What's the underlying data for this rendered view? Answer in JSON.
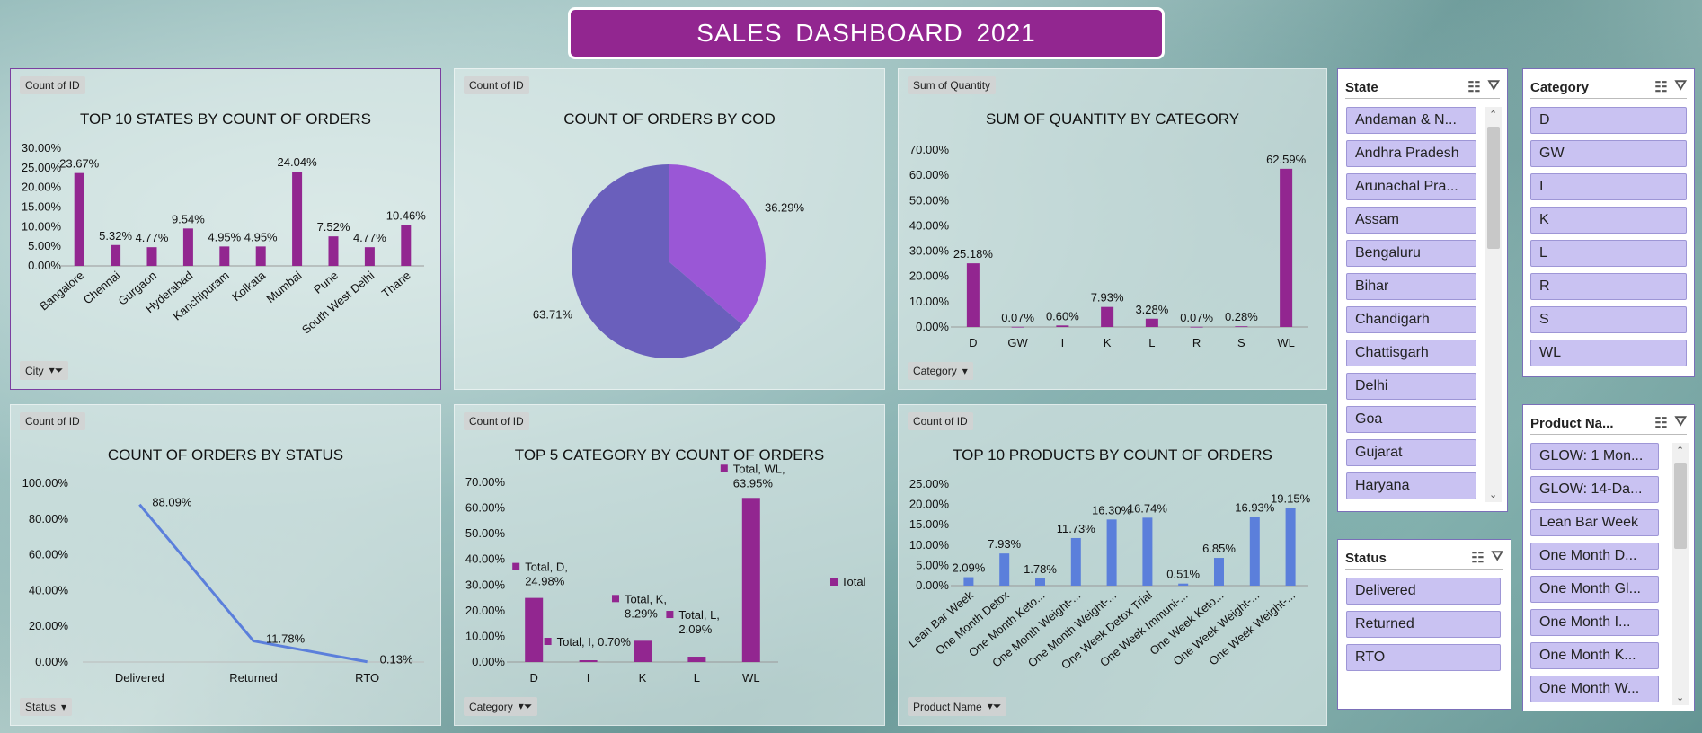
{
  "title": "SALES  DASHBOARD  2021",
  "colors": {
    "purple": "#922690",
    "blue": "#5b7fdb",
    "pie_light": "#9a57d6",
    "pie_dark": "#6a5fbc",
    "slicer_item": "#c9c2f2"
  },
  "chart_data": [
    {
      "type": "bar",
      "pill": "Count of ID",
      "title": "TOP 10 STATES BY COUNT OF ORDERS",
      "filter_label": "City",
      "categories": [
        "Bangalore",
        "Chennai",
        "Gurgaon",
        "Hyderabad",
        "Kanchipuram",
        "Kolkata",
        "Mumbai",
        "Pune",
        "South West Delhi",
        "Thane"
      ],
      "values": [
        23.67,
        5.32,
        4.77,
        9.54,
        4.95,
        4.95,
        24.04,
        7.52,
        4.77,
        10.46
      ],
      "labels": [
        "23.67%",
        "5.32%",
        "4.77%",
        "9.54%",
        "4.95%",
        "4.95%",
        "24.04%",
        "7.52%",
        "4.77%",
        "10.46%"
      ],
      "yticks": [
        "0.00%",
        "5.00%",
        "10.00%",
        "15.00%",
        "20.00%",
        "25.00%",
        "30.00%"
      ],
      "ylim": [
        0,
        30
      ]
    },
    {
      "type": "pie",
      "pill": "Count of ID",
      "title": "COUNT OF ORDERS BY COD",
      "values": [
        36.29,
        63.71
      ],
      "labels": [
        "36.29%",
        "63.71%"
      ]
    },
    {
      "type": "bar",
      "pill": "Sum of Quantity",
      "title": "SUM OF QUANTITY BY CATEGORY",
      "filter_label": "Category",
      "categories": [
        "D",
        "GW",
        "I",
        "K",
        "L",
        "R",
        "S",
        "WL"
      ],
      "values": [
        25.18,
        0.07,
        0.6,
        7.93,
        3.28,
        0.07,
        0.28,
        62.59
      ],
      "labels": [
        "25.18%",
        "0.07%",
        "0.60%",
        "7.93%",
        "3.28%",
        "0.07%",
        "0.28%",
        "62.59%"
      ],
      "yticks": [
        "0.00%",
        "10.00%",
        "20.00%",
        "30.00%",
        "40.00%",
        "50.00%",
        "60.00%",
        "70.00%"
      ],
      "ylim": [
        0,
        70
      ]
    },
    {
      "type": "line",
      "pill": "Count of ID",
      "title": "COUNT OF ORDERS BY STATUS",
      "filter_label": "Status",
      "categories": [
        "Delivered",
        "Returned",
        "RTO"
      ],
      "values": [
        88.09,
        11.78,
        0.13
      ],
      "labels": [
        "88.09%",
        "11.78%",
        "0.13%"
      ],
      "yticks": [
        "0.00%",
        "20.00%",
        "40.00%",
        "60.00%",
        "80.00%",
        "100.00%"
      ],
      "ylim": [
        0,
        100
      ]
    },
    {
      "type": "bar",
      "pill": "Count of ID",
      "title": "TOP 5 CATEGORY BY COUNT OF ORDERS",
      "filter_label": "Category",
      "legend": "Total",
      "categories": [
        "D",
        "I",
        "K",
        "L",
        "WL"
      ],
      "values": [
        24.98,
        0.7,
        8.29,
        2.09,
        63.95
      ],
      "labels": [
        [
          "Total, D,",
          "24.98%"
        ],
        [
          "Total, I, 0.70%"
        ],
        [
          "Total, K,",
          "8.29%"
        ],
        [
          "Total, L,",
          "2.09%"
        ],
        [
          "Total, WL,",
          "63.95%"
        ]
      ],
      "yticks": [
        "0.00%",
        "10.00%",
        "20.00%",
        "30.00%",
        "40.00%",
        "50.00%",
        "60.00%",
        "70.00%"
      ],
      "ylim": [
        0,
        70
      ]
    },
    {
      "type": "bar",
      "pill": "Count of ID",
      "title": "TOP 10 PRODUCTS BY COUNT OF ORDERS",
      "filter_label": "Product  Name",
      "categories": [
        "Lean Bar Week",
        "One Month Detox",
        "One Month Keto...",
        "One Month Weight-...",
        "One Month Weight-...",
        "One Week Detox Trial",
        "One Week Immuni-...",
        "One Week Keto...",
        "One Week Weight-...",
        "One Week Weight-..."
      ],
      "values": [
        2.09,
        7.93,
        1.78,
        11.73,
        16.3,
        16.74,
        0.51,
        6.85,
        16.93,
        19.15
      ],
      "labels": [
        "2.09%",
        "7.93%",
        "1.78%",
        "11.73%",
        "16.30%",
        "16.74%",
        "0.51%",
        "6.85%",
        "16.93%",
        "19.15%"
      ],
      "yticks": [
        "0.00%",
        "5.00%",
        "10.00%",
        "15.00%",
        "20.00%",
        "25.00%"
      ],
      "ylim": [
        0,
        25
      ]
    }
  ],
  "slicers": {
    "state": {
      "title": "State",
      "items": [
        "Andaman & N...",
        "Andhra Pradesh",
        "Arunachal Pra...",
        "Assam",
        "Bengaluru",
        "Bihar",
        "Chandigarh",
        "Chattisgarh",
        "Delhi",
        "Goa",
        "Gujarat",
        "Haryana"
      ]
    },
    "category": {
      "title": "Category",
      "items": [
        "D",
        "GW",
        "I",
        "K",
        "L",
        "R",
        "S",
        "WL"
      ]
    },
    "status": {
      "title": "Status",
      "items": [
        "Delivered",
        "Returned",
        "RTO"
      ]
    },
    "product": {
      "title": "Product Na...",
      "items": [
        "GLOW: 1 Mon...",
        "GLOW: 14-Da...",
        "Lean Bar Week",
        "One Month D...",
        "One Month Gl...",
        "One Month I...",
        "One Month K...",
        "One Month W..."
      ]
    }
  }
}
